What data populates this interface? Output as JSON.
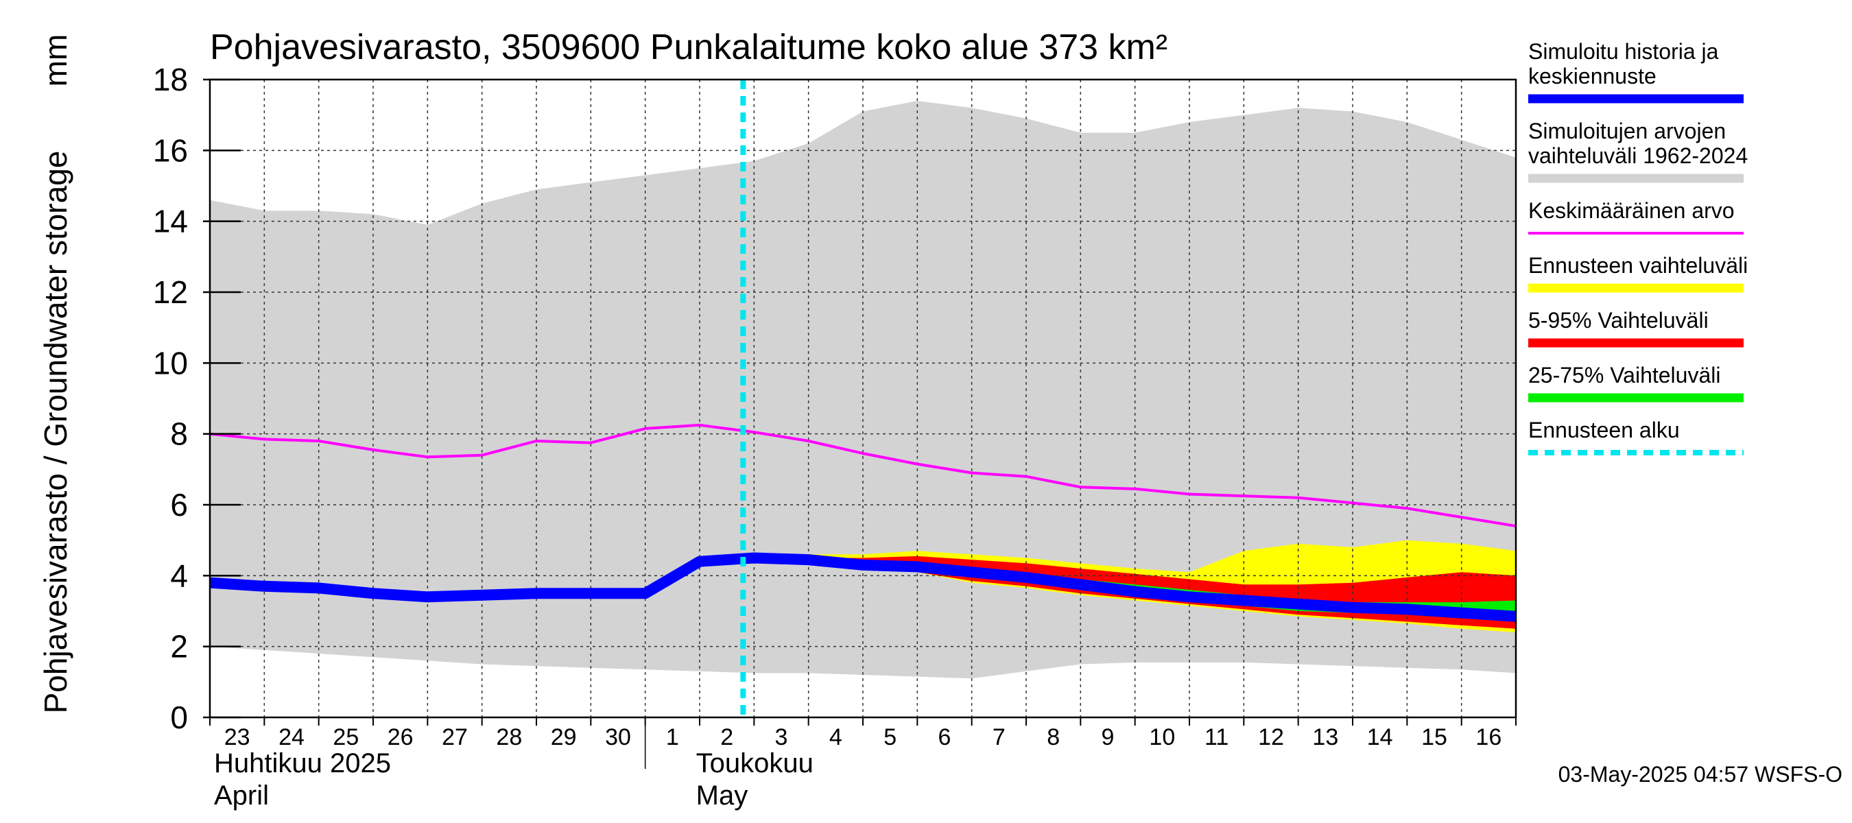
{
  "chart_data": {
    "type": "area",
    "title": "Pohjavesivarasto, 3509600 Punkalaitume koko alue 373 km²",
    "ylabel": "Pohjavesivarasto / Groundwater storage",
    "yunit": "mm",
    "ylim": [
      0,
      18
    ],
    "yticks": [
      "0",
      "2",
      "4",
      "6",
      "8",
      "10",
      "12",
      "14",
      "16",
      "18"
    ],
    "grid": true,
    "legend_position": "right",
    "x": [
      "2025-04-23",
      "2025-04-24",
      "2025-04-25",
      "2025-04-26",
      "2025-04-27",
      "2025-04-28",
      "2025-04-29",
      "2025-04-30",
      "2025-05-01",
      "2025-05-02",
      "2025-05-03",
      "2025-05-04",
      "2025-05-05",
      "2025-05-06",
      "2025-05-07",
      "2025-05-08",
      "2025-05-09",
      "2025-05-10",
      "2025-05-11",
      "2025-05-12",
      "2025-05-13",
      "2025-05-14",
      "2025-05-15",
      "2025-05-16",
      "2025-05-17"
    ],
    "day_labels": [
      "23",
      "24",
      "25",
      "26",
      "27",
      "28",
      "29",
      "30",
      "1",
      "2",
      "3",
      "4",
      "5",
      "6",
      "7",
      "8",
      "9",
      "10",
      "11",
      "12",
      "13",
      "14",
      "15",
      "16"
    ],
    "months": [
      {
        "fi": "Huhtikuu  2025",
        "en": "April"
      },
      {
        "fi": "Toukokuu",
        "en": "May"
      }
    ],
    "forecast_start": "2025-05-03",
    "series": [
      {
        "name": "Simuloitujen arvojen vaihteluväli 1962-2024",
        "color": "#d3d3d3",
        "kind": "band",
        "upper": [
          14.6,
          14.3,
          14.3,
          14.2,
          13.9,
          14.5,
          14.9,
          15.1,
          15.3,
          15.5,
          15.7,
          16.2,
          17.1,
          17.4,
          17.2,
          16.9,
          16.5,
          16.5,
          16.8,
          17.0,
          17.2,
          17.1,
          16.8,
          16.3,
          15.8
        ],
        "lower": [
          2.0,
          1.9,
          1.8,
          1.7,
          1.6,
          1.5,
          1.45,
          1.4,
          1.35,
          1.3,
          1.25,
          1.25,
          1.2,
          1.15,
          1.1,
          1.3,
          1.5,
          1.55,
          1.55,
          1.55,
          1.5,
          1.45,
          1.4,
          1.35,
          1.25
        ]
      },
      {
        "name": "Ennusteen vaihteluväli",
        "color": "#ffff00",
        "kind": "band",
        "x_start": 10,
        "upper": [
          4.6,
          4.6,
          4.6,
          4.7,
          4.6,
          4.5,
          4.35,
          4.2,
          4.1,
          4.7,
          4.9,
          4.8,
          5.0,
          4.9,
          4.7
        ],
        "lower": [
          4.5,
          4.45,
          4.3,
          4.1,
          3.8,
          3.65,
          3.45,
          3.3,
          3.15,
          3.0,
          2.85,
          2.75,
          2.65,
          2.5,
          2.4
        ]
      },
      {
        "name": "5-95% Vaihteluväli",
        "color": "#ff0000",
        "kind": "band",
        "x_start": 10,
        "upper": [
          4.55,
          4.5,
          4.5,
          4.55,
          4.45,
          4.35,
          4.2,
          4.05,
          3.9,
          3.75,
          3.75,
          3.8,
          3.95,
          4.1,
          4.0
        ],
        "lower": [
          4.5,
          4.4,
          4.3,
          4.1,
          3.85,
          3.7,
          3.5,
          3.35,
          3.2,
          3.05,
          2.9,
          2.8,
          2.7,
          2.6,
          2.5
        ]
      },
      {
        "name": "25-75% Vaihteluväli",
        "color": "#00ee00",
        "kind": "band",
        "x_start": 10,
        "upper": [
          4.5,
          4.45,
          4.35,
          4.35,
          4.2,
          4.05,
          3.9,
          3.75,
          3.6,
          3.45,
          3.3,
          3.25,
          3.25,
          3.25,
          3.3
        ],
        "lower": [
          4.5,
          4.4,
          4.25,
          4.15,
          3.95,
          3.8,
          3.6,
          3.45,
          3.3,
          3.15,
          3.0,
          2.95,
          2.9,
          2.8,
          2.7
        ]
      },
      {
        "name": "Keskimääräinen arvo",
        "color": "#ff00ff",
        "kind": "line",
        "values": [
          8.0,
          7.85,
          7.8,
          7.55,
          7.35,
          7.4,
          7.8,
          7.75,
          8.15,
          8.25,
          8.05,
          7.8,
          7.45,
          7.15,
          6.9,
          6.8,
          6.5,
          6.45,
          6.3,
          6.25,
          6.2,
          6.05,
          5.9,
          5.65,
          5.4
        ]
      },
      {
        "name": "Simuloitu historia ja keskiennuste",
        "color": "#0000ff",
        "kind": "line",
        "values": [
          3.8,
          3.7,
          3.65,
          3.5,
          3.4,
          3.45,
          3.5,
          3.5,
          3.5,
          4.4,
          4.5,
          4.45,
          4.3,
          4.25,
          4.1,
          3.95,
          3.75,
          3.55,
          3.4,
          3.3,
          3.2,
          3.1,
          3.05,
          2.95,
          2.85
        ]
      }
    ],
    "legend": [
      {
        "lines": [
          "Simuloitu historia ja",
          "keskiennuste"
        ],
        "color": "#0000ff",
        "style": "thick"
      },
      {
        "lines": [
          "Simuloitujen arvojen",
          "vaihteluväli 1962-2024"
        ],
        "color": "#d3d3d3",
        "style": "thick"
      },
      {
        "lines": [
          "Keskimääräinen arvo"
        ],
        "color": "#ff00ff",
        "style": "thin"
      },
      {
        "lines": [
          "Ennusteen vaihteluväli"
        ],
        "color": "#ffff00",
        "style": "thick"
      },
      {
        "lines": [
          "5-95% Vaihteluväli"
        ],
        "color": "#ff0000",
        "style": "thick"
      },
      {
        "lines": [
          "25-75% Vaihteluväli"
        ],
        "color": "#00ee00",
        "style": "thick"
      },
      {
        "lines": [
          "Ennusteen alku"
        ],
        "color": "#00e5ee",
        "style": "dashed"
      }
    ],
    "forecast_line_color": "#00e5ee",
    "timestamp": "03-May-2025 04:57 WSFS-O"
  }
}
